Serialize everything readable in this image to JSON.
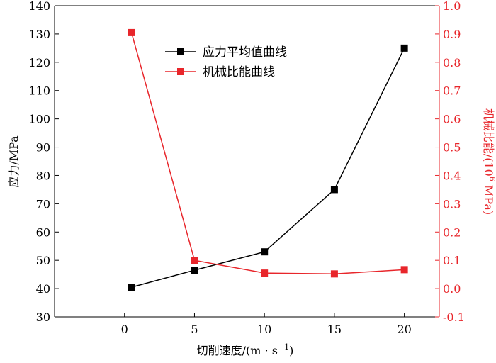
{
  "chart_data": {
    "type": "line",
    "xlabel": "切削速度/(m · s",
    "xlabel_sup": "−1",
    "xlabel_close": ")",
    "ylabel_left": "应力/MPa",
    "ylabel_right": "机械比能/(10",
    "ylabel_right_sup": "6",
    "ylabel_right_close": " MPa)",
    "xlim": [
      -5,
      22.5
    ],
    "ylim_left": [
      30,
      140
    ],
    "ylim_right": [
      -0.1,
      1.0
    ],
    "x_ticks": [
      "0",
      "5",
      "10",
      "15",
      "20"
    ],
    "y_left_ticks": [
      "30",
      "40",
      "50",
      "60",
      "70",
      "80",
      "90",
      "100",
      "110",
      "120",
      "130",
      "140"
    ],
    "y_right_ticks": [
      "-0.1",
      "0.0",
      "0.1",
      "0.2",
      "0.3",
      "0.4",
      "0.5",
      "0.6",
      "0.7",
      "0.8",
      "0.9",
      "1.0"
    ],
    "legend_position": "top-center",
    "grid": false,
    "series": [
      {
        "name": "应力平均值曲线",
        "axis": "left",
        "color": "#000000",
        "marker": "square",
        "x": [
          0.5,
          5,
          10,
          15,
          20
        ],
        "y": [
          40.5,
          46.5,
          53,
          75,
          125
        ]
      },
      {
        "name": "机械比能曲线",
        "axis": "right",
        "color": "#e8262b",
        "marker": "square",
        "x": [
          0.5,
          5,
          10,
          15,
          20
        ],
        "y": [
          0.905,
          0.1,
          0.055,
          0.052,
          0.067
        ]
      }
    ]
  }
}
